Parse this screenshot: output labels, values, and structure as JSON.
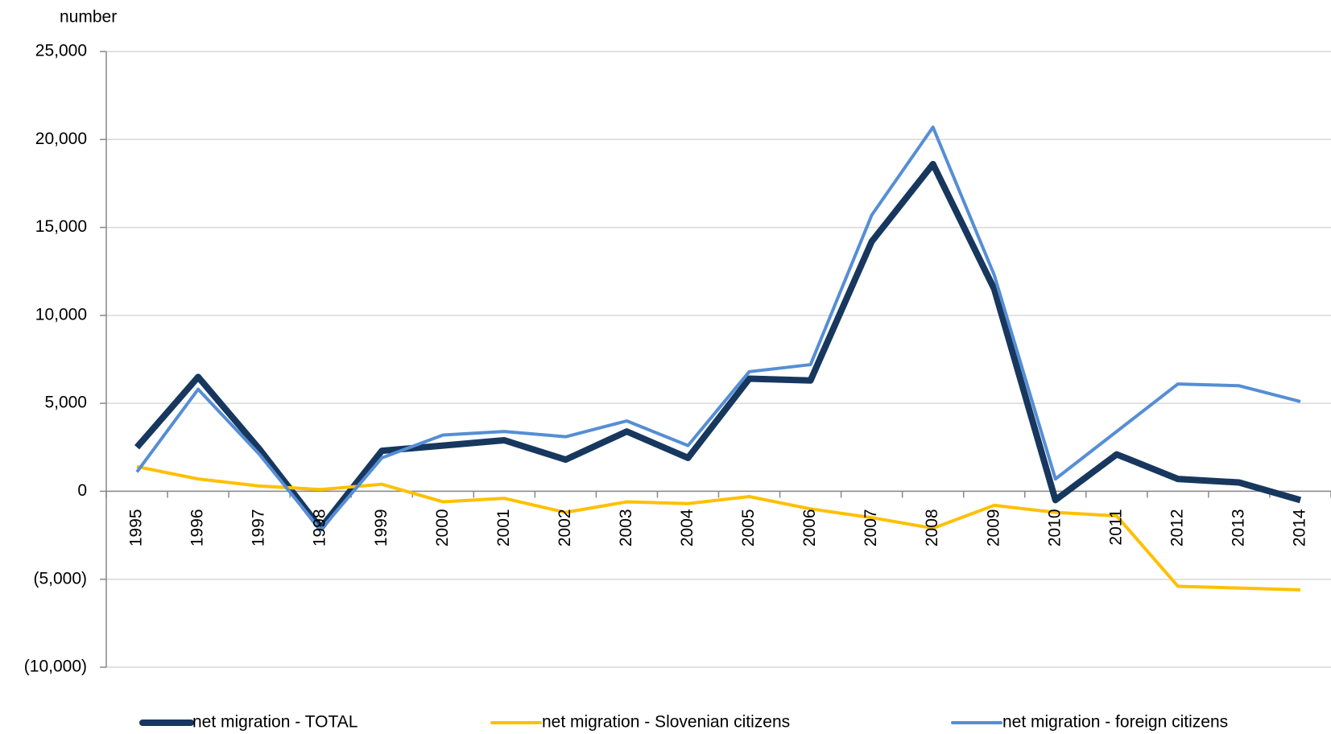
{
  "chart_data": {
    "type": "line",
    "y_axis_label": "number",
    "categories": [
      "1995",
      "1996",
      "1997",
      "1998",
      "1999",
      "2000",
      "2001",
      "2002",
      "2003",
      "2004",
      "2005",
      "2006",
      "2007",
      "2008",
      "2009",
      "2010",
      "2011",
      "2012",
      "2013",
      "2014"
    ],
    "series": [
      {
        "name": "net migration - TOTAL",
        "color": "#17375e",
        "width": 8,
        "values": [
          2500,
          6500,
          2400,
          -2100,
          2300,
          2600,
          2900,
          1800,
          3400,
          1900,
          6400,
          6300,
          14200,
          18600,
          11500,
          -500,
          2100,
          700,
          500,
          -500
        ]
      },
      {
        "name": "net migration - Slovenian citizens",
        "color": "#ffc000",
        "width": 4,
        "values": [
          1400,
          700,
          300,
          100,
          400,
          -600,
          -400,
          -1200,
          -600,
          -700,
          -300,
          -1000,
          -1500,
          -2100,
          -800,
          -1200,
          -1400,
          -5400,
          -5500,
          -5600
        ]
      },
      {
        "name": "net migration - foreign citizens",
        "color": "#558ed5",
        "width": 4,
        "values": [
          1100,
          5800,
          2100,
          -2200,
          1900,
          3200,
          3400,
          3100,
          4000,
          2600,
          6800,
          7200,
          15700,
          20700,
          12300,
          700,
          3400,
          6100,
          6000,
          5100
        ]
      }
    ],
    "ylim": [
      -10000,
      25000
    ],
    "yticks": [
      {
        "value": -10000,
        "label": "(10,000)"
      },
      {
        "value": -5000,
        "label": "(5,000)"
      },
      0,
      {
        "value": 5000,
        "label": "5,000"
      },
      {
        "value": 10000,
        "label": "10,000"
      },
      {
        "value": 15000,
        "label": "15,000"
      },
      {
        "value": 20000,
        "label": "20,000"
      },
      {
        "value": 25000,
        "label": "25,000"
      }
    ],
    "grid": true,
    "legend": "bottom"
  }
}
